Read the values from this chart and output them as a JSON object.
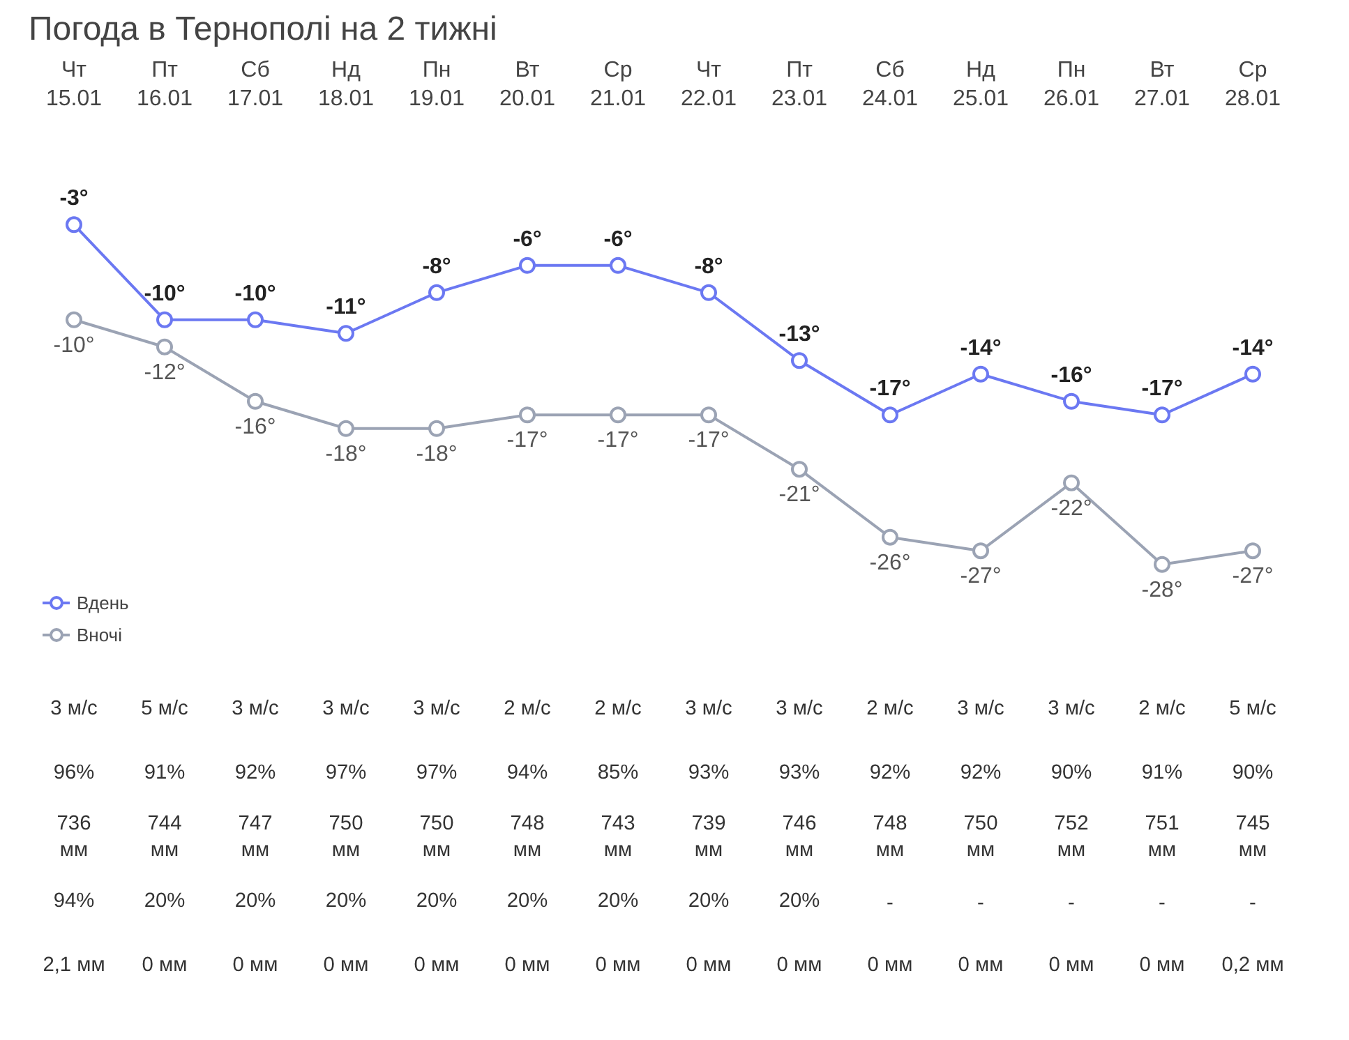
{
  "chart_data": {
    "type": "line",
    "title": "Погода в Тернополі на 2 тижні",
    "categories": [
      "Чт\n15.01",
      "Пт\n16.01",
      "Сб\n17.01",
      "Нд\n18.01",
      "Пн\n19.01",
      "Вт\n20.01",
      "Ср\n21.01",
      "Чт\n22.01",
      "Пт\n23.01",
      "Сб\n24.01",
      "Нд\n25.01",
      "Пн\n26.01",
      "Вт\n27.01",
      "Ср\n28.01"
    ],
    "series": [
      {
        "name": "Вдень",
        "color": "#6b78f2",
        "values": [
          -3,
          -10,
          -10,
          -11,
          -8,
          -6,
          -6,
          -8,
          -13,
          -17,
          -14,
          -16,
          -17,
          -14
        ],
        "value_labels": [
          "-3°",
          "-10°",
          "-10°",
          "-11°",
          "-8°",
          "-6°",
          "-6°",
          "-8°",
          "-13°",
          "-17°",
          "-14°",
          "-16°",
          "-17°",
          "-14°"
        ]
      },
      {
        "name": "Вночі",
        "color": "#9ba3b4",
        "values": [
          -10,
          -12,
          -16,
          -18,
          -18,
          -17,
          -17,
          -17,
          -21,
          -26,
          -27,
          -22,
          -28,
          -27
        ],
        "value_labels": [
          "-10°",
          "-12°",
          "-16°",
          "-18°",
          "-18°",
          "-17°",
          "-17°",
          "-17°",
          "-21°",
          "-26°",
          "-27°",
          "-22°",
          "-28°",
          "-27°"
        ]
      }
    ],
    "marker": "circle",
    "legend": "bottom left",
    "grid": false,
    "annotations": [
      "3 м/с",
      "5 м/с",
      "3 м/с",
      "3 м/с",
      "3 м/с",
      "2 м/с",
      "2 м/с",
      "3 м/с",
      "3 м/с",
      "2 м/с",
      "3 м/с",
      "3 м/с",
      "2 м/с",
      "5 м/с",
      "96%",
      "91%",
      "92%",
      "97%",
      "97%",
      "94%",
      "85%",
      "93%",
      "93%",
      "92%",
      "92%",
      "90%",
      "91%",
      "90%",
      "736\nмм",
      "744\nмм",
      "747\nмм",
      "750\nмм",
      "750\nмм",
      "748\nмм",
      "743\nмм",
      "739\nмм",
      "746\nмм",
      "748\nмм",
      "750\nмм",
      "752\nмм",
      "751\nмм",
      "745\nмм",
      "94%",
      "20%",
      "20%",
      "20%",
      "20%",
      "20%",
      "20%",
      "20%",
      "20%",
      "-",
      "-",
      "-",
      "-",
      "-",
      "2,1 мм",
      "0 мм",
      "0 мм",
      "0 мм",
      "0 мм",
      "0 мм",
      "0 мм",
      "0 мм",
      "0 мм",
      "0 мм",
      "0 мм",
      "0 мм",
      "0 мм",
      "0,2 мм"
    ]
  }
}
